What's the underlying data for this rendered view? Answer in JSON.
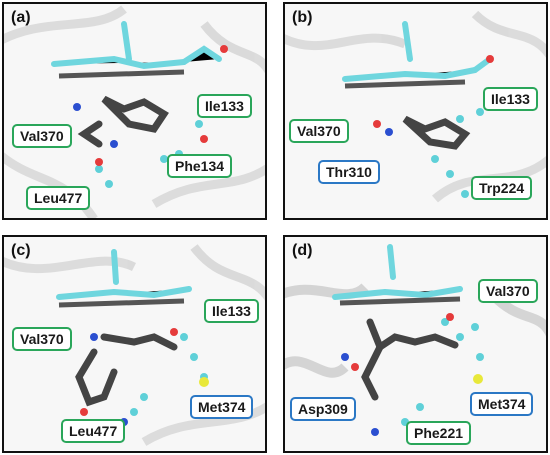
{
  "panels": [
    {
      "label": "(a)",
      "residues": [
        {
          "name": "Val370",
          "style": "green"
        },
        {
          "name": "Ile133",
          "style": "green"
        },
        {
          "name": "Phe134",
          "style": "green"
        },
        {
          "name": "Leu477",
          "style": "green"
        }
      ]
    },
    {
      "label": "(b)",
      "residues": [
        {
          "name": "Ile133",
          "style": "green"
        },
        {
          "name": "Val370",
          "style": "green"
        },
        {
          "name": "Thr310",
          "style": "blue"
        },
        {
          "name": "Trp224",
          "style": "green"
        }
      ]
    },
    {
      "label": "(c)",
      "residues": [
        {
          "name": "Ile133",
          "style": "green"
        },
        {
          "name": "Val370",
          "style": "green"
        },
        {
          "name": "Met374",
          "style": "blue"
        },
        {
          "name": "Leu477",
          "style": "green"
        }
      ]
    },
    {
      "label": "(d)",
      "residues": [
        {
          "name": "Val370",
          "style": "green"
        },
        {
          "name": "Met374",
          "style": "blue"
        },
        {
          "name": "Asp309",
          "style": "blue"
        },
        {
          "name": "Phe221",
          "style": "green"
        }
      ]
    }
  ],
  "colors": {
    "green_border": "#2aa65a",
    "blue_border": "#2b78c5",
    "carbon_cyan": "#5fd0d8",
    "ligand_gray": "#4a4a4a"
  }
}
